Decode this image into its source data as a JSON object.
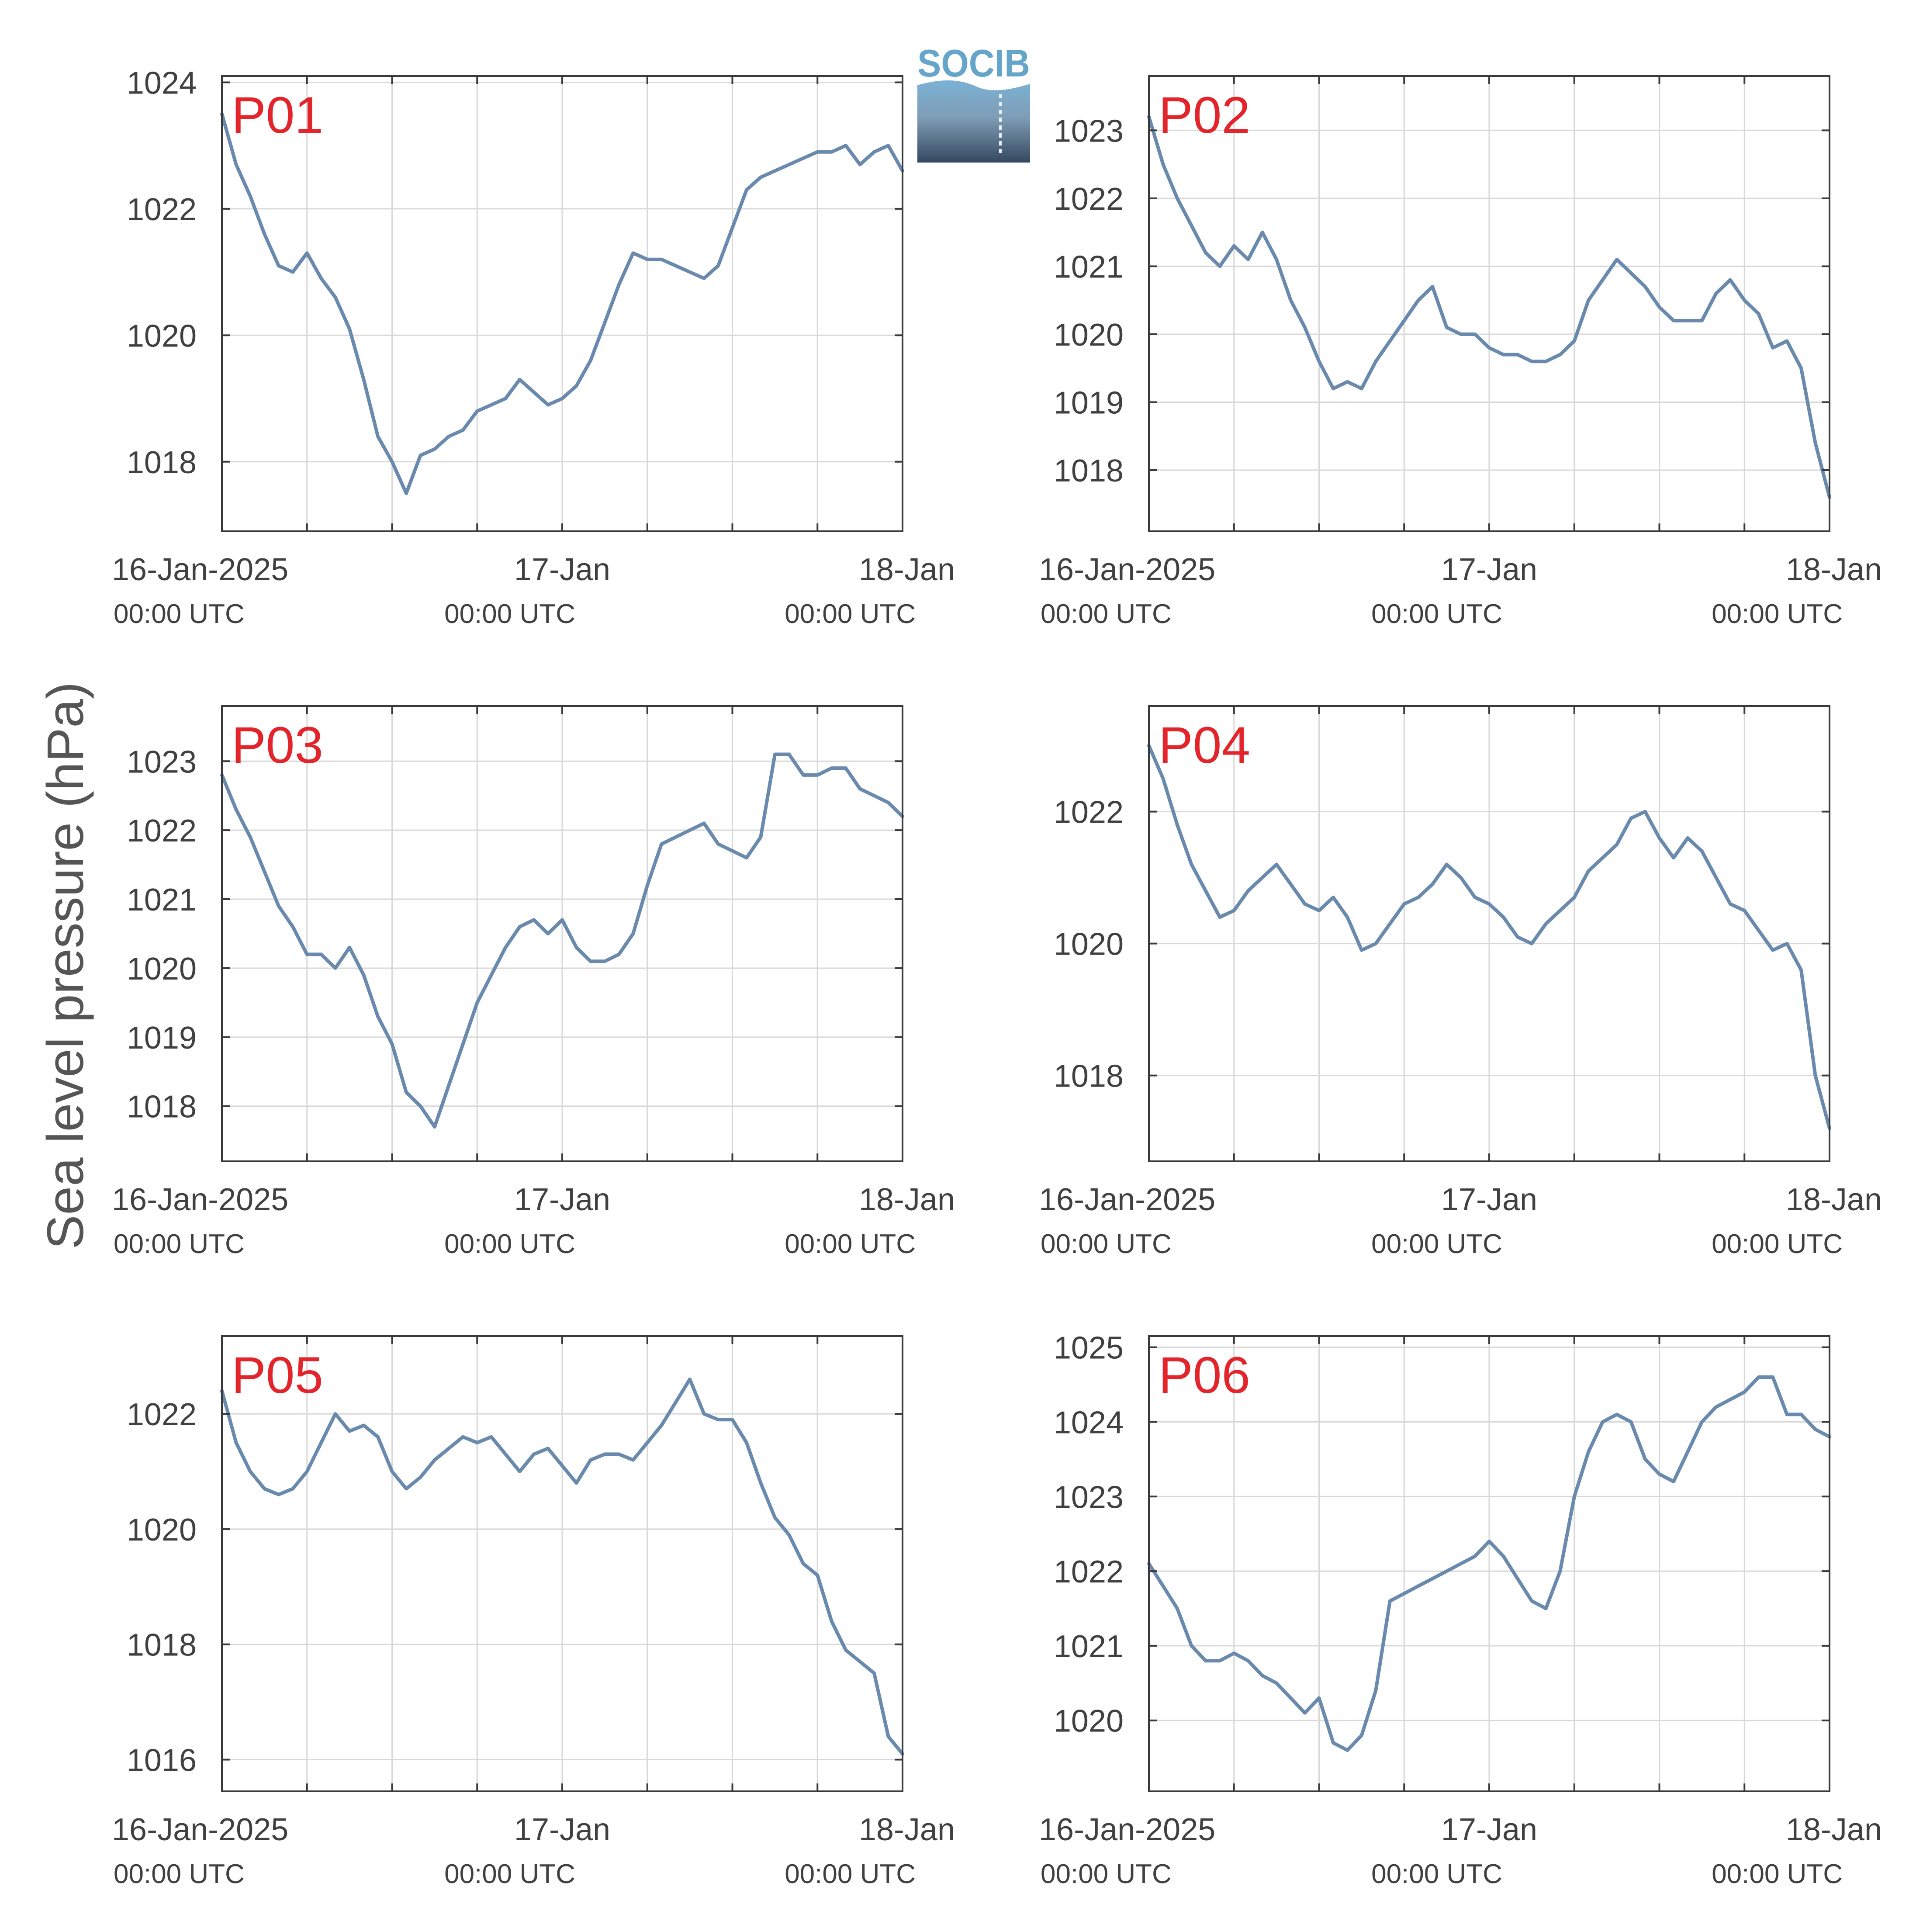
{
  "figure": {
    "ylabel": "Sea level pressure (hPa)",
    "logo_text": "SOCIB",
    "line_color": "#6a8aad",
    "label_color": "#e3242b",
    "grid_color": "#d8d8d8"
  },
  "x_axis": {
    "range": [
      0,
      48
    ],
    "minor_tick_hours": 6,
    "tick_labels": [
      {
        "hour": 0,
        "line1": "16-Jan-2025",
        "line2": "00:00 UTC"
      },
      {
        "hour": 24,
        "line1": "17-Jan",
        "line2": "00:00 UTC"
      },
      {
        "hour": 48,
        "line1": "18-Jan",
        "line2": "00:00 UTC"
      }
    ]
  },
  "chart_data": [
    {
      "type": "line",
      "panel": "P01",
      "ylim": [
        1016.9,
        1024.1
      ],
      "yticks": [
        1018,
        1020,
        1022,
        1024
      ],
      "x_unit": "hours since 16-Jan-2025 00:00 UTC",
      "x": [
        0,
        1,
        2,
        3,
        4,
        5,
        6,
        7,
        8,
        9,
        10,
        11,
        12,
        13,
        14,
        15,
        16,
        17,
        18,
        19,
        20,
        21,
        22,
        23,
        24,
        25,
        26,
        27,
        28,
        29,
        30,
        31,
        32,
        33,
        34,
        35,
        36,
        37,
        38,
        39,
        40,
        41,
        42,
        43,
        44,
        45,
        46,
        47,
        48
      ],
      "y": [
        1023.5,
        1022.7,
        1022.2,
        1021.6,
        1021.1,
        1021.0,
        1021.3,
        1020.9,
        1020.6,
        1020.1,
        1019.3,
        1018.4,
        1018.0,
        1017.5,
        1018.1,
        1018.2,
        1018.4,
        1018.5,
        1018.8,
        1018.9,
        1019.0,
        1019.3,
        1019.1,
        1018.9,
        1019.0,
        1019.2,
        1019.6,
        1020.2,
        1020.8,
        1021.3,
        1021.2,
        1021.2,
        1021.1,
        1021.0,
        1020.9,
        1021.1,
        1021.7,
        1022.3,
        1022.5,
        1022.6,
        1022.7,
        1022.8,
        1022.9,
        1022.9,
        1023.0,
        1022.7,
        1022.9,
        1023.0,
        1022.6
      ]
    },
    {
      "type": "line",
      "panel": "P02",
      "ylim": [
        1017.1,
        1023.8
      ],
      "yticks": [
        1018,
        1019,
        1020,
        1021,
        1022,
        1023
      ],
      "x_unit": "hours since 16-Jan-2025 00:00 UTC",
      "x": [
        0,
        1,
        2,
        3,
        4,
        5,
        6,
        7,
        8,
        9,
        10,
        11,
        12,
        13,
        14,
        15,
        16,
        17,
        18,
        19,
        20,
        21,
        22,
        23,
        24,
        25,
        26,
        27,
        28,
        29,
        30,
        31,
        32,
        33,
        34,
        35,
        36,
        37,
        38,
        39,
        40,
        41,
        42,
        43,
        44,
        45,
        46,
        47,
        48
      ],
      "y": [
        1023.2,
        1022.5,
        1022.0,
        1021.6,
        1021.2,
        1021.0,
        1021.3,
        1021.1,
        1021.5,
        1021.1,
        1020.5,
        1020.1,
        1019.6,
        1019.2,
        1019.3,
        1019.2,
        1019.6,
        1019.9,
        1020.2,
        1020.5,
        1020.7,
        1020.1,
        1020.0,
        1020.0,
        1019.8,
        1019.7,
        1019.7,
        1019.6,
        1019.6,
        1019.7,
        1019.9,
        1020.5,
        1020.8,
        1021.1,
        1020.9,
        1020.7,
        1020.4,
        1020.2,
        1020.2,
        1020.2,
        1020.6,
        1020.8,
        1020.5,
        1020.3,
        1019.8,
        1019.9,
        1019.5,
        1018.4,
        1017.6
      ]
    },
    {
      "type": "line",
      "panel": "P03",
      "ylim": [
        1017.2,
        1023.8
      ],
      "yticks": [
        1018,
        1019,
        1020,
        1021,
        1022,
        1023
      ],
      "x_unit": "hours since 16-Jan-2025 00:00 UTC",
      "x": [
        0,
        1,
        2,
        3,
        4,
        5,
        6,
        7,
        8,
        9,
        10,
        11,
        12,
        13,
        14,
        15,
        16,
        17,
        18,
        19,
        20,
        21,
        22,
        23,
        24,
        25,
        26,
        27,
        28,
        29,
        30,
        31,
        32,
        33,
        34,
        35,
        36,
        37,
        38,
        39,
        40,
        41,
        42,
        43,
        44,
        45,
        46,
        47,
        48
      ],
      "y": [
        1022.8,
        1022.3,
        1021.9,
        1021.4,
        1020.9,
        1020.6,
        1020.2,
        1020.2,
        1020.0,
        1020.3,
        1019.9,
        1019.3,
        1018.9,
        1018.2,
        1018.0,
        1017.7,
        1018.3,
        1018.9,
        1019.5,
        1019.9,
        1020.3,
        1020.6,
        1020.7,
        1020.5,
        1020.7,
        1020.3,
        1020.1,
        1020.1,
        1020.2,
        1020.5,
        1021.2,
        1021.8,
        1021.9,
        1022.0,
        1022.1,
        1021.8,
        1021.7,
        1021.6,
        1021.9,
        1023.1,
        1023.1,
        1022.8,
        1022.8,
        1022.9,
        1022.9,
        1022.6,
        1022.5,
        1022.4,
        1022.2
      ]
    },
    {
      "type": "line",
      "panel": "P04",
      "ylim": [
        1016.7,
        1023.6
      ],
      "yticks": [
        1018,
        1020,
        1022
      ],
      "x_unit": "hours since 16-Jan-2025 00:00 UTC",
      "x": [
        0,
        1,
        2,
        3,
        4,
        5,
        6,
        7,
        8,
        9,
        10,
        11,
        12,
        13,
        14,
        15,
        16,
        17,
        18,
        19,
        20,
        21,
        22,
        23,
        24,
        25,
        26,
        27,
        28,
        29,
        30,
        31,
        32,
        33,
        34,
        35,
        36,
        37,
        38,
        39,
        40,
        41,
        42,
        43,
        44,
        45,
        46,
        47,
        48
      ],
      "y": [
        1023.0,
        1022.5,
        1021.8,
        1021.2,
        1020.8,
        1020.4,
        1020.5,
        1020.8,
        1021.0,
        1021.2,
        1020.9,
        1020.6,
        1020.5,
        1020.7,
        1020.4,
        1019.9,
        1020.0,
        1020.3,
        1020.6,
        1020.7,
        1020.9,
        1021.2,
        1021.0,
        1020.7,
        1020.6,
        1020.4,
        1020.1,
        1020.0,
        1020.3,
        1020.5,
        1020.7,
        1021.1,
        1021.3,
        1021.5,
        1021.9,
        1022.0,
        1021.6,
        1021.3,
        1021.6,
        1021.4,
        1021.0,
        1020.6,
        1020.5,
        1020.2,
        1019.9,
        1020.0,
        1019.6,
        1018.0,
        1017.2
      ]
    },
    {
      "type": "line",
      "panel": "P05",
      "ylim": [
        1015.45,
        1023.35
      ],
      "yticks": [
        1016,
        1018,
        1020,
        1022
      ],
      "x_unit": "hours since 16-Jan-2025 00:00 UTC",
      "x": [
        0,
        1,
        2,
        3,
        4,
        5,
        6,
        7,
        8,
        9,
        10,
        11,
        12,
        13,
        14,
        15,
        16,
        17,
        18,
        19,
        20,
        21,
        22,
        23,
        24,
        25,
        26,
        27,
        28,
        29,
        30,
        31,
        32,
        33,
        34,
        35,
        36,
        37,
        38,
        39,
        40,
        41,
        42,
        43,
        44,
        45,
        46,
        47,
        48
      ],
      "y": [
        1022.4,
        1021.5,
        1021.0,
        1020.7,
        1020.6,
        1020.7,
        1021.0,
        1021.5,
        1022.0,
        1021.7,
        1021.8,
        1021.6,
        1021.0,
        1020.7,
        1020.9,
        1021.2,
        1021.4,
        1021.6,
        1021.5,
        1021.6,
        1021.3,
        1021.0,
        1021.3,
        1021.4,
        1021.1,
        1020.8,
        1021.2,
        1021.3,
        1021.3,
        1021.2,
        1021.5,
        1021.8,
        1022.2,
        1022.6,
        1022.0,
        1021.9,
        1021.9,
        1021.5,
        1020.8,
        1020.2,
        1019.9,
        1019.4,
        1019.2,
        1018.4,
        1017.9,
        1017.7,
        1017.5,
        1016.4,
        1016.1
      ]
    },
    {
      "type": "line",
      "panel": "P06",
      "ylim": [
        1019.05,
        1025.15
      ],
      "yticks": [
        1020,
        1021,
        1022,
        1023,
        1024,
        1025
      ],
      "x_unit": "hours since 16-Jan-2025 00:00 UTC",
      "x": [
        0,
        1,
        2,
        3,
        4,
        5,
        6,
        7,
        8,
        9,
        10,
        11,
        12,
        13,
        14,
        15,
        16,
        17,
        18,
        19,
        20,
        21,
        22,
        23,
        24,
        25,
        26,
        27,
        28,
        29,
        30,
        31,
        32,
        33,
        34,
        35,
        36,
        37,
        38,
        39,
        40,
        41,
        42,
        43,
        44,
        45,
        46,
        47,
        48
      ],
      "y": [
        1022.1,
        1021.8,
        1021.5,
        1021.0,
        1020.8,
        1020.8,
        1020.9,
        1020.8,
        1020.6,
        1020.5,
        1020.3,
        1020.1,
        1020.3,
        1019.7,
        1019.6,
        1019.8,
        1020.4,
        1021.6,
        1021.7,
        1021.8,
        1021.9,
        1022.0,
        1022.1,
        1022.2,
        1022.4,
        1022.2,
        1021.9,
        1021.6,
        1021.5,
        1022.0,
        1023.0,
        1023.6,
        1024.0,
        1024.1,
        1024.0,
        1023.5,
        1023.3,
        1023.2,
        1023.6,
        1024.0,
        1024.2,
        1024.3,
        1024.4,
        1024.6,
        1024.6,
        1024.1,
        1024.1,
        1023.9,
        1023.8
      ]
    }
  ]
}
